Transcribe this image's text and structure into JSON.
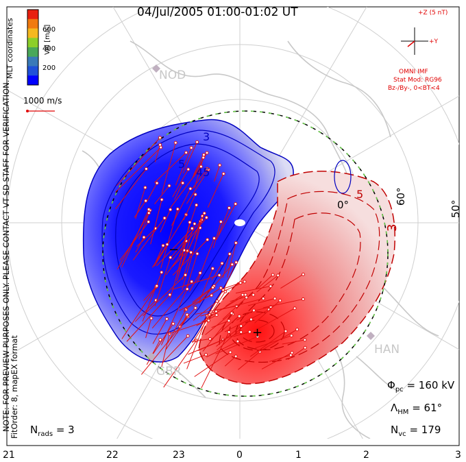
{
  "title": "04/Jul/2005 01:00-01:02 UT",
  "colorbar": {
    "label": "Vel [m/s]",
    "ticks": [
      "600",
      "400",
      "200"
    ],
    "colors": [
      "#e8200f",
      "#f07a10",
      "#f4b820",
      "#8ccf2a",
      "#4aa85a",
      "#3a7ab8",
      "#2050d8",
      "#0000ff"
    ]
  },
  "coords_label": "MLT coordinates",
  "scale_vector_label": "1000 m/s",
  "note_text": "NOTE: FOR PREVIEW PURPOSES ONLY. PLEASE CONTACT VT-SD STAFF FOR VERIFICATION.",
  "fit_text": "FitOrder: 8, mapEX format",
  "imf": {
    "z_label": "+Z (5 nT)",
    "y_label": "+Y",
    "source": "OMNI IMF",
    "model": "Stat Mod: RG96",
    "condition": "Bz-/By-, 0<BT<4"
  },
  "latitude_labels": [
    "60°",
    "50°",
    "0°"
  ],
  "station_labels": [
    "NOD",
    "HAN",
    "GBR"
  ],
  "contour_labels": [
    "3",
    "5",
    "45",
    "5",
    "3"
  ],
  "stats": {
    "phi_symbol": "Φ",
    "phi_sub": "pc",
    "phi_value": "= 160 kV",
    "lambda_symbol": "Λ",
    "lambda_sub": "HM",
    "lambda_value": "= 61°",
    "nvc_symbol": "N",
    "nvc_sub": "vc",
    "nvc_value": "= 179",
    "nrads_symbol": "N",
    "nrads_sub": "rads",
    "nrads_value": "= 3"
  },
  "mlt_ticks": [
    "21",
    "22",
    "23",
    "0",
    "1",
    "2",
    "3"
  ],
  "colors": {
    "negative_cell": "#0000ff",
    "positive_cell": "#e00000",
    "boundary": "#6ad04a"
  }
}
